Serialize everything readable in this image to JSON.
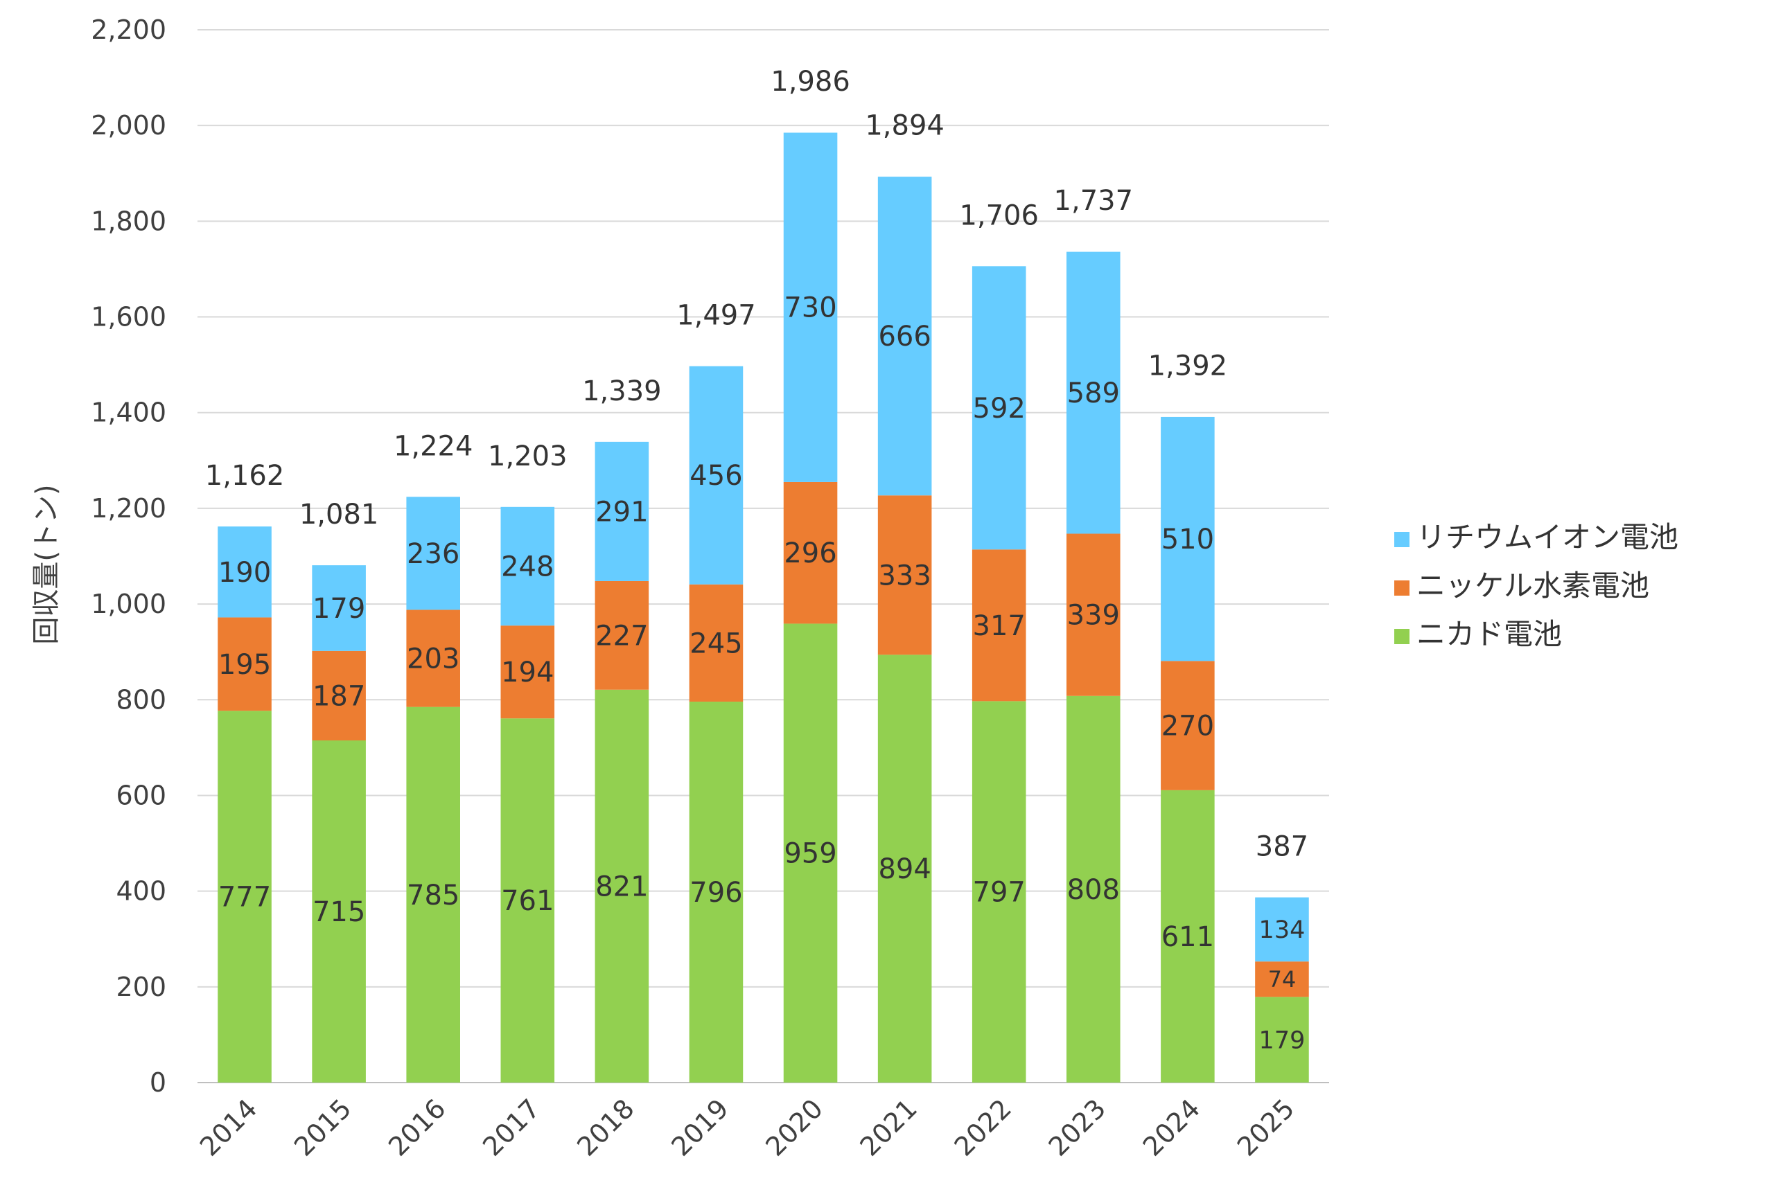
{
  "chart_data": {
    "type": "bar",
    "stacked": true,
    "title": "",
    "xlabel": "",
    "ylabel": "回収量(トン)",
    "ylim": [
      0,
      2200
    ],
    "yticks": [
      0,
      200,
      400,
      600,
      800,
      1000,
      1200,
      1400,
      1600,
      1800,
      2000,
      2200
    ],
    "ytick_labels": [
      "0",
      "200",
      "400",
      "600",
      "800",
      "1,000",
      "1,200",
      "1,400",
      "1,600",
      "1,800",
      "2,000",
      "2,200"
    ],
    "grid": "horizontal",
    "legend_position": "right",
    "categories": [
      "2014",
      "2015",
      "2016",
      "2017",
      "2018",
      "2019",
      "2020",
      "2021",
      "2022",
      "2023",
      "2024",
      "2025"
    ],
    "series": [
      {
        "name": "ニカド電池",
        "color": "#92d050",
        "values": [
          777,
          715,
          785,
          761,
          821,
          796,
          959,
          894,
          797,
          808,
          611,
          179
        ]
      },
      {
        "name": "ニッケル水素電池",
        "color": "#ed7d31",
        "values": [
          195,
          187,
          203,
          194,
          227,
          245,
          296,
          333,
          317,
          339,
          270,
          74
        ]
      },
      {
        "name": "リチウムイオン電池",
        "color": "#66ccff",
        "values": [
          190,
          179,
          236,
          248,
          291,
          456,
          730,
          666,
          592,
          589,
          510,
          134
        ]
      }
    ],
    "totals": [
      1162,
      1081,
      1224,
      1203,
      1339,
      1497,
      1986,
      1894,
      1706,
      1737,
      1392,
      387
    ],
    "legend_order": [
      "リチウムイオン電池",
      "ニッケル水素電池",
      "ニカド電池"
    ]
  }
}
